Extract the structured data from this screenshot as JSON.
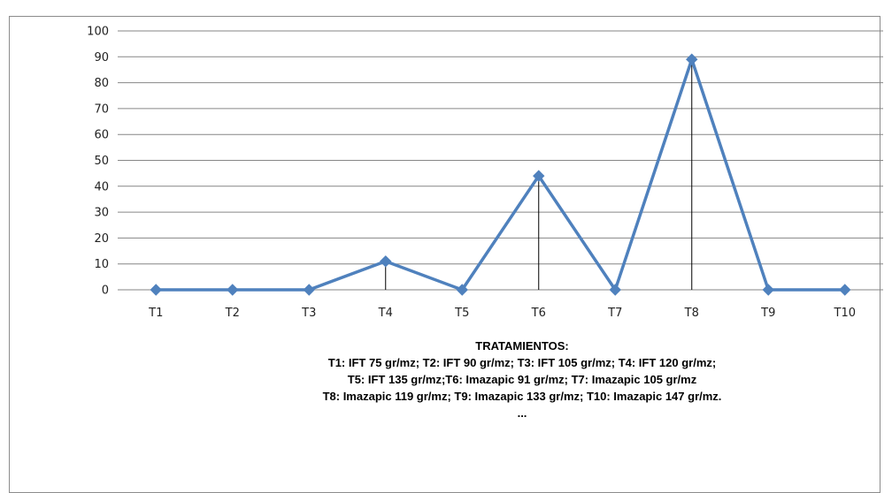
{
  "chart_data": {
    "type": "line",
    "categories": [
      "T1",
      "T2",
      "T3",
      "T4",
      "T5",
      "T6",
      "T7",
      "T8",
      "T9",
      "T10"
    ],
    "values": [
      0,
      0,
      0,
      11,
      0,
      44,
      0,
      89,
      0,
      0
    ],
    "ylim": [
      0,
      100
    ],
    "yticks": [
      "0",
      "10",
      "20",
      "30",
      "40",
      "50",
      "60",
      "70",
      "80",
      "90",
      "100"
    ],
    "grid": true,
    "drop_lines": true,
    "line_color": "#4f81bd",
    "marker": "diamond",
    "caption": {
      "heading": "TRATAMIENTOS:",
      "lines": [
        "T1: IFT 75 gr/mz; T2: IFT 90 gr/mz; T3: IFT 105 gr/mz; T4: IFT 120 gr/mz;",
        "T5: IFT 135 gr/mz;T6: Imazapic 91 gr/mz; T7: Imazapic 105 gr/mz",
        "T8: Imazapic 119 gr/mz; T9: Imazapic 133 gr/mz; T10: Imazapic 147 gr/mz.",
        "..."
      ]
    }
  }
}
